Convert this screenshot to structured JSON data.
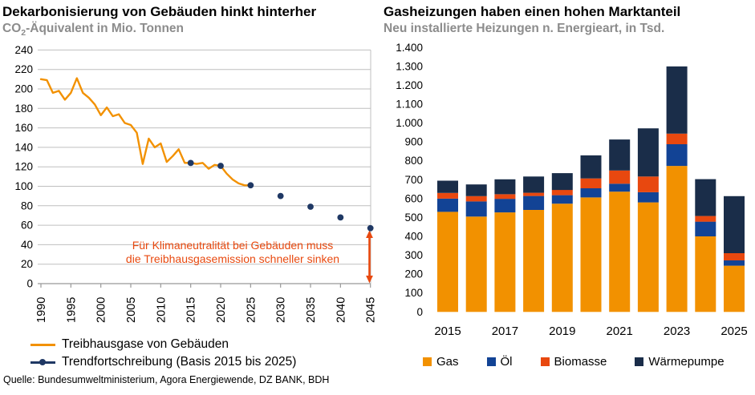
{
  "left": {
    "subtitle_pre": "CO",
    "subtitle_sub": "2",
    "subtitle_post": "-Äquivalent in Mio. Tonnen"
  },
  "footer": {
    "source": "Quelle: Bundesumweltministerium, Agora Energiewende, DZ BANK, BDH"
  },
  "colors": {
    "accent_orange": "#F29100",
    "oil_blue": "#124395",
    "biomass_red": "#E8480F",
    "heatpump_navy": "#1A2D49",
    "trend_navy": "#1F3864",
    "annotation_red": "#E8490F",
    "grid_gray": "#BFBFBF",
    "axis_gray": "#999999",
    "subtitle_gray": "#8C8C8C"
  },
  "chart_data": [
    {
      "type": "line",
      "title": "Dekarbonisierung von Gebäuden hinkt hinterher",
      "ylabel": "CO2-Äquivalent in Mio. Tonnen",
      "ylim": [
        0,
        240
      ],
      "yticks": [
        0,
        20,
        40,
        60,
        80,
        100,
        120,
        140,
        160,
        180,
        200,
        220,
        240
      ],
      "xticks": [
        1990,
        1995,
        2000,
        2005,
        2010,
        2015,
        2020,
        2025,
        2030,
        2035,
        2040,
        2045
      ],
      "grid": "horizontal",
      "legend_position": "bottom-left",
      "series": [
        {
          "name": "Treibhausgase von Gebäuden",
          "key": "treibhausgase",
          "style": "line",
          "color": "#F29100",
          "x": [
            1990,
            1991,
            1992,
            1993,
            1994,
            1995,
            1996,
            1997,
            1998,
            1999,
            2000,
            2001,
            2002,
            2003,
            2004,
            2005,
            2006,
            2007,
            2008,
            2009,
            2010,
            2011,
            2012,
            2013,
            2014,
            2015,
            2016,
            2017,
            2018,
            2019,
            2020,
            2021,
            2022,
            2023,
            2024,
            2025
          ],
          "values": [
            210,
            209,
            196,
            198,
            189,
            196,
            211,
            196,
            191,
            184,
            173,
            181,
            172,
            174,
            165,
            163,
            155,
            123,
            149,
            140,
            144,
            125,
            131,
            138,
            124,
            124,
            123,
            124,
            118,
            122,
            121,
            113,
            107,
            103,
            101,
            101
          ]
        },
        {
          "name": "Trendfortschreibung (Basis 2015 bis 2025)",
          "key": "trendfortschreibung",
          "style": "dots",
          "color": "#1F3864",
          "x": [
            2015,
            2020,
            2025,
            2030,
            2035,
            2040,
            2045
          ],
          "values": [
            124,
            121,
            101,
            90,
            79,
            68,
            57
          ]
        }
      ],
      "annotation": {
        "line1": "Für Klimaneutralität bei Gebäuden muss",
        "line2": "die Treibhausgasemission schneller sinken",
        "color": "#E8490F",
        "arrow": "vertical-double-headed-at-2045"
      }
    },
    {
      "type": "bar",
      "stacked": true,
      "title": "Gasheizungen haben einen hohen Marktanteil",
      "ylabel": "Neu installierte Heizungen n. Energieart, in Tsd.",
      "categories": [
        2015,
        2016,
        2017,
        2018,
        2019,
        2020,
        2021,
        2022,
        2023,
        2024,
        2025
      ],
      "ylim": [
        0,
        1400
      ],
      "ytick_step": 100,
      "ytick_labels": [
        "0",
        "100",
        "200",
        "300",
        "400",
        "500",
        "600",
        "700",
        "800",
        "900",
        "1.000",
        "1.100",
        "1.200",
        "1.300",
        "1.400"
      ],
      "xtick_labels": [
        "2015",
        "2017",
        "2019",
        "2021",
        "2023",
        "2025"
      ],
      "grid": "none",
      "legend_position": "bottom",
      "series": [
        {
          "name": "Gas",
          "key": "gas",
          "color": "#F29100",
          "values": [
            530,
            505,
            527,
            540,
            573,
            606,
            637,
            580,
            773,
            400,
            245
          ]
        },
        {
          "name": "Öl",
          "key": "oel",
          "color": "#124395",
          "values": [
            70,
            80,
            72,
            74,
            45,
            49,
            42,
            54,
            115,
            78,
            28
          ]
        },
        {
          "name": "Biomasse",
          "key": "biomasse",
          "color": "#E8480F",
          "values": [
            30,
            28,
            24,
            17,
            28,
            52,
            70,
            83,
            56,
            30,
            38
          ]
        },
        {
          "name": "Wärmepumpe",
          "key": "waermepumpe",
          "color": "#1A2D49",
          "values": [
            65,
            62,
            79,
            86,
            89,
            122,
            164,
            255,
            356,
            195,
            302
          ]
        }
      ]
    }
  ]
}
